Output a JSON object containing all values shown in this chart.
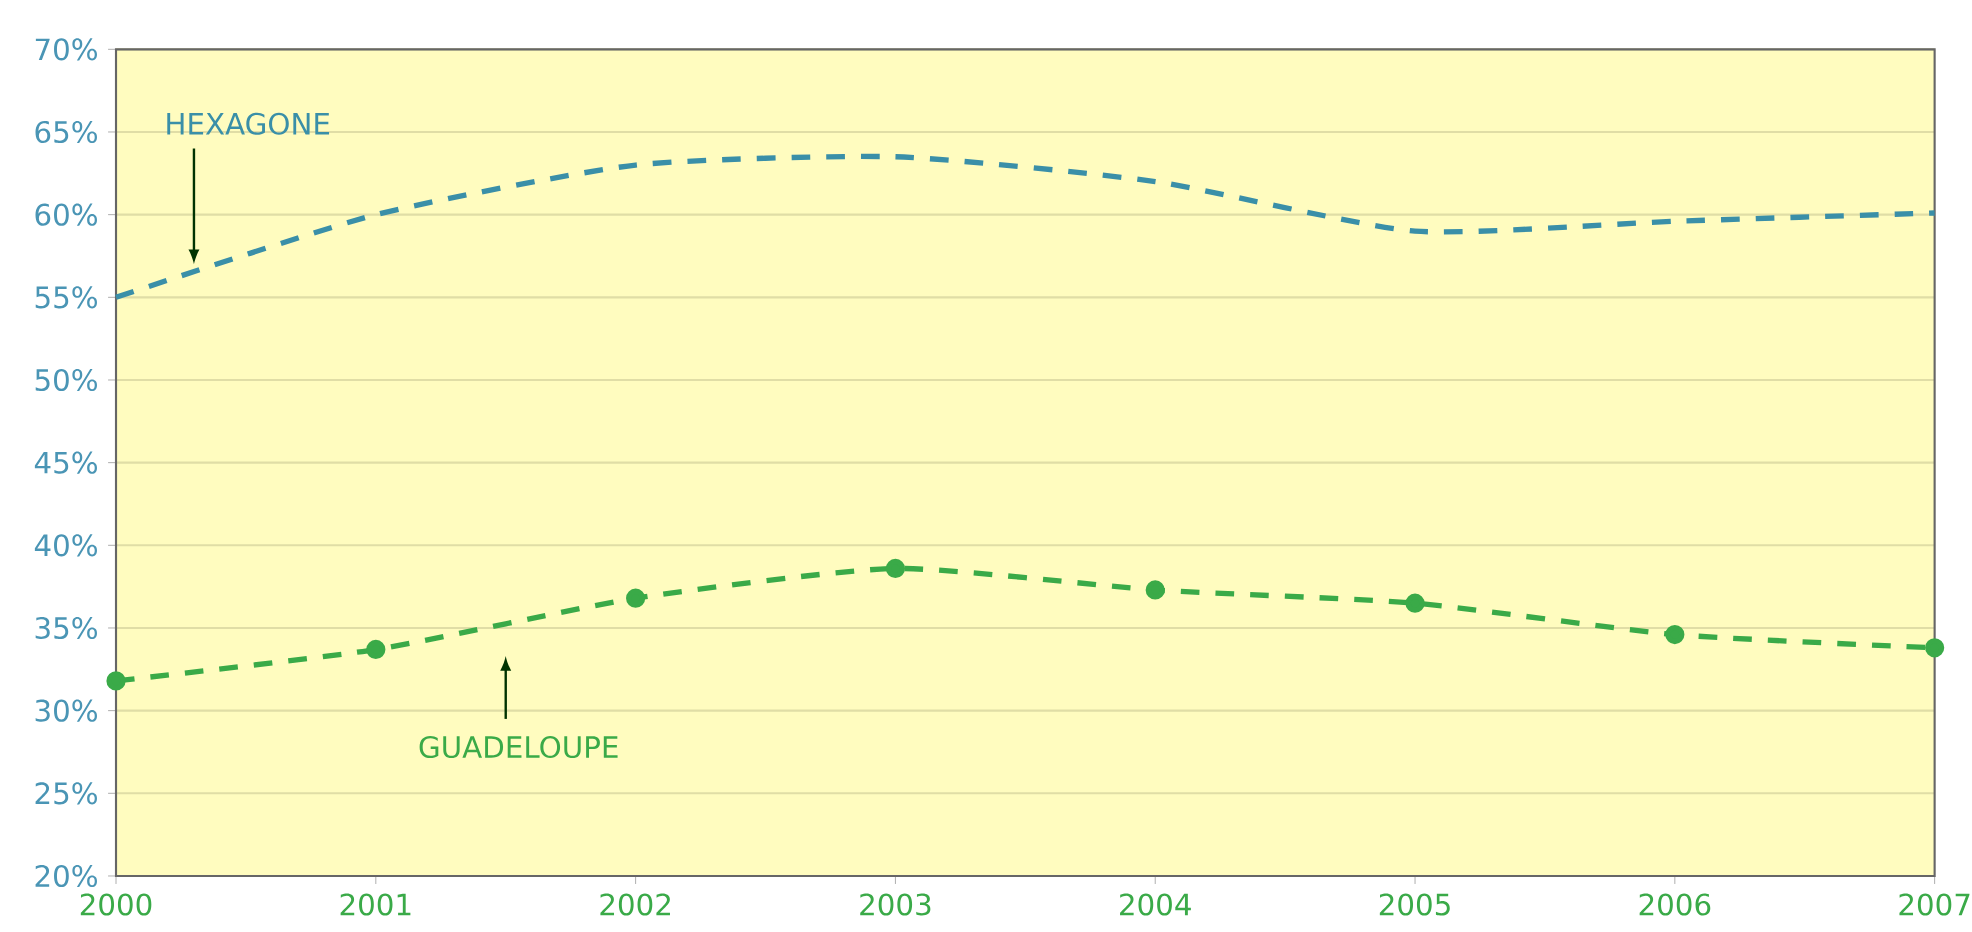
{
  "chart_data": {
    "type": "line",
    "x": [
      2000,
      2001,
      2002,
      2003,
      2004,
      2005,
      2006,
      2007
    ],
    "series": [
      {
        "name": "HEXAGONE",
        "color": "#3a8fa8",
        "values": [
          55,
          60,
          63,
          63.5,
          62,
          59,
          59.6,
          60.1
        ],
        "marker": "none",
        "line_style": "dashed"
      },
      {
        "name": "GUADELOUPE",
        "color": "#3aaa48",
        "values": [
          31.8,
          33.7,
          36.8,
          38.6,
          37.3,
          36.5,
          34.6,
          33.8
        ],
        "marker": "circle",
        "line_style": "dashed"
      }
    ],
    "xlim": [
      2000,
      2007
    ],
    "xticks": [
      2000,
      2001,
      2002,
      2003,
      2004,
      2005,
      2006,
      2007
    ],
    "ylim": [
      20,
      70
    ],
    "yticks": [
      {
        "value": 20,
        "label": "20%"
      },
      {
        "value": 25,
        "label": "25%"
      },
      {
        "value": 30,
        "label": "30%"
      },
      {
        "value": 35,
        "label": "35%"
      },
      {
        "value": 40,
        "label": "40%"
      },
      {
        "value": 45,
        "label": "45%"
      },
      {
        "value": 50,
        "label": "50%"
      },
      {
        "value": 55,
        "label": "55%"
      },
      {
        "value": 60,
        "label": "60%"
      },
      {
        "value": 65,
        "label": "65%"
      },
      {
        "value": 70,
        "label": "70%"
      }
    ],
    "grid": "y",
    "legend": false
  }
}
